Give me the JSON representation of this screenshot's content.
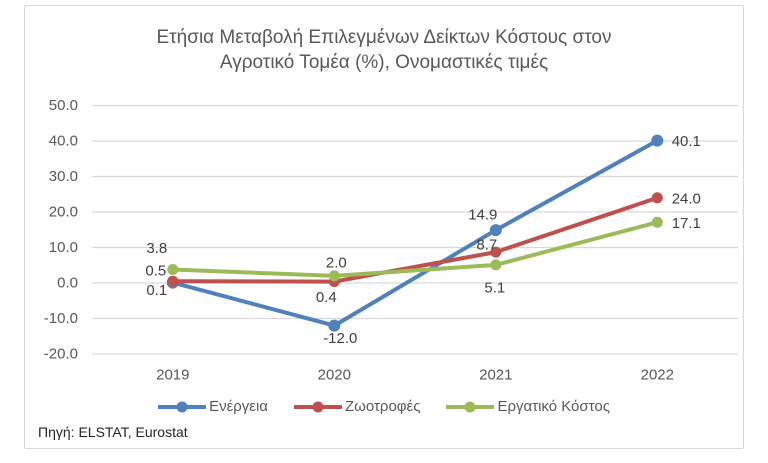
{
  "title_lines": [
    "Ετήσια Μεταβολή Επιλεγμένων Δείκτων Κόστους στον",
    "Αγροτικό Τομέα (%), Ονομαστικές τιμές"
  ],
  "source_note": "Πηγή: ELSTAT, Eurostat",
  "colors": {
    "title_text": "#595959",
    "axis_text": "#595959",
    "data_label_text": "#404040",
    "gridline": "#D9D9D9",
    "frame_border": "#D9D9D9",
    "background": "#ffffff"
  },
  "chart_data": {
    "type": "line",
    "title": "Ετήσια Μεταβολή Επιλεγμένων Δείκτων Κόστους στον Αγροτικό Τομέα (%), Ονομαστικές τιμές",
    "categories": [
      "2019",
      "2020",
      "2021",
      "2022"
    ],
    "series": [
      {
        "name": "Ενέργεια",
        "slug": "energeia",
        "color": "#4F81BD",
        "values": [
          0.1,
          -12.0,
          14.9,
          40.1
        ]
      },
      {
        "name": "Ζωοτροφές",
        "slug": "zootrofes",
        "color": "#C0504D",
        "values": [
          0.5,
          0.4,
          8.7,
          24.0
        ]
      },
      {
        "name": "Εργατικό Κόστος",
        "slug": "ergatiko-kostos",
        "color": "#9BBB59",
        "values": [
          3.8,
          2.0,
          5.1,
          17.1
        ]
      }
    ],
    "y_ticks": [
      50.0,
      40.0,
      30.0,
      20.0,
      10.0,
      0.0,
      -10.0,
      -20.0
    ],
    "ylim": [
      -20,
      50
    ],
    "xlabel": "",
    "ylabel": "",
    "grid": true,
    "data_labels": true,
    "legend_position": "bottom",
    "marker": "circle"
  }
}
